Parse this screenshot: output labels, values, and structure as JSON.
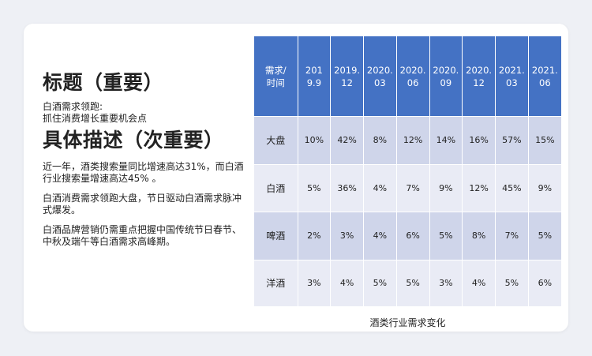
{
  "left": {
    "title": "标题（重要）",
    "subtitle_lines": [
      "白酒需求领跑:",
      "抓住消费增长重要机会点"
    ],
    "title2": "具体描述（次重要）",
    "paragraphs": [
      "近一年，酒类搜索量同比增速高达31%，而白酒行业搜索量增速高达45% 。",
      "白酒消费需求领跑大盘，节日驱动白酒需求脉冲式爆发。",
      "白酒品牌营销仍需重点把握中国传统节日春节、中秋及端午等白酒需求高峰期。"
    ]
  },
  "table": {
    "header_first": [
      "需求/",
      "时间"
    ],
    "columns": [
      [
        "201",
        "9.9"
      ],
      [
        "2019.",
        "12"
      ],
      [
        "2020.",
        "03"
      ],
      [
        "2020.",
        "06"
      ],
      [
        "2020.",
        "09"
      ],
      [
        "2020.",
        "12"
      ],
      [
        "2021.",
        "03"
      ],
      [
        "2021.",
        "06"
      ]
    ],
    "rows": [
      {
        "label": "大盘",
        "values": [
          "10%",
          "42%",
          "8%",
          "12%",
          "14%",
          "16%",
          "57%",
          "15%"
        ]
      },
      {
        "label": "白酒",
        "values": [
          "5%",
          "36%",
          "4%",
          "7%",
          "9%",
          "12%",
          "45%",
          "9%"
        ]
      },
      {
        "label": "啤酒",
        "values": [
          "2%",
          "3%",
          "4%",
          "6%",
          "5%",
          "8%",
          "7%",
          "5%"
        ]
      },
      {
        "label": "洋酒",
        "values": [
          "3%",
          "4%",
          "5%",
          "5%",
          "3%",
          "4%",
          "5%",
          "6%"
        ]
      }
    ],
    "caption": "酒类行业需求变化"
  },
  "colors": {
    "header_bg": "#4472c4",
    "row_odd": "#cfd5ea",
    "row_even": "#e9ebf5",
    "page_bg": "#eef0f5"
  }
}
